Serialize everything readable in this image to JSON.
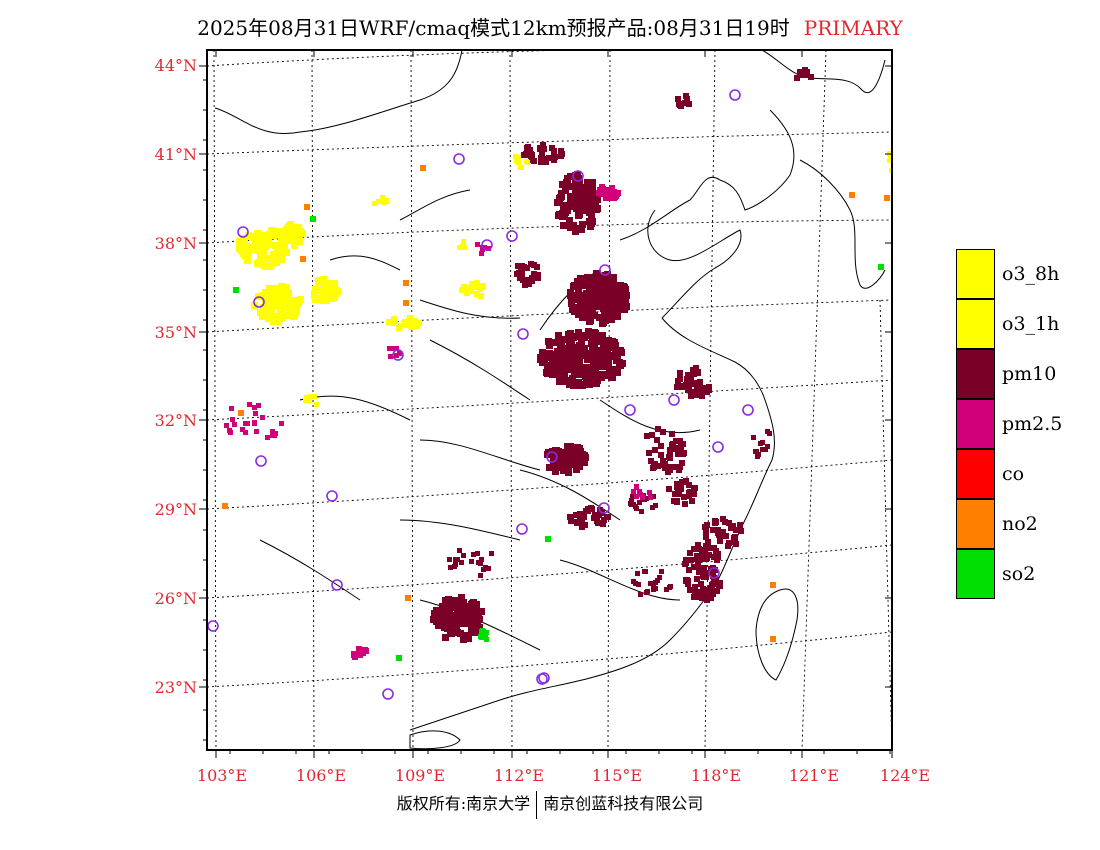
{
  "header": {
    "title": "2025年08月31日WRF/cmaq模式12km预报产品:08月31日19时",
    "tag": "PRIMARY"
  },
  "footer": {
    "left": "版权所有:南京大学",
    "right": "南京创蓝科技有限公司"
  },
  "axes": {
    "lat_labels": [
      "44°N",
      "41°N",
      "38°N",
      "35°N",
      "32°N",
      "29°N",
      "26°N",
      "23°N"
    ],
    "lon_labels": [
      "103°E",
      "106°E",
      "109°E",
      "112°E",
      "115°E",
      "118°E",
      "121°E",
      "124°E"
    ],
    "label_color": "#e0282e"
  },
  "legend": {
    "items": [
      {
        "label": "o3_8h",
        "color": "#ffff00"
      },
      {
        "label": "o3_1h",
        "color": "#ffff00"
      },
      {
        "label": "pm10",
        "color": "#7a0027"
      },
      {
        "label": "pm2.5",
        "color": "#d1007a"
      },
      {
        "label": "co",
        "color": "#ff0000"
      },
      {
        "label": "no2",
        "color": "#ff7f00"
      },
      {
        "label": "so2",
        "color": "#00dd00"
      }
    ]
  },
  "stations_color": "#8a2be2"
}
